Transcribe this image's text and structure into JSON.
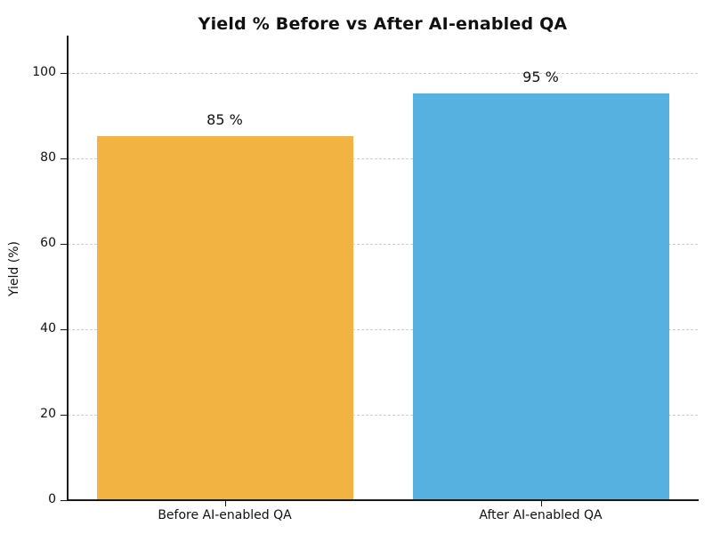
{
  "figure": {
    "background_color": "#ffffff",
    "text_color": "#111111",
    "spine_color": "#1a1a1a",
    "gridline_color": "#cfcfcf"
  },
  "chart_data": {
    "type": "bar",
    "title": "Yield % Before vs After AI-enabled QA",
    "categories": [
      "Before AI-enabled QA",
      "After AI-enabled QA"
    ],
    "values": [
      85,
      95
    ],
    "value_labels": [
      "85 %",
      "95 %"
    ],
    "bar_colors": [
      "#F2B342",
      "#56B0E0"
    ],
    "xlabel": "",
    "ylabel": "Yield (%)",
    "ylim": [
      0,
      110
    ],
    "yticks": [
      0,
      20,
      40,
      60,
      80,
      100
    ],
    "grid": "horizontal dashed gridlines at y ticks",
    "legend": "none",
    "spines": "left and bottom only"
  }
}
